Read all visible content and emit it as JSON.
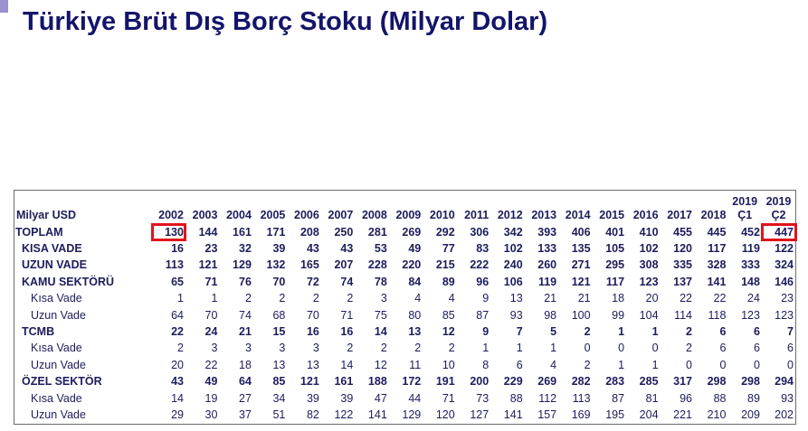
{
  "title": "Türkiye Brüt Dış Borç Stoku (Milyar Dolar)",
  "table": {
    "header": [
      "Milyar USD",
      "2002",
      "2003",
      "2004",
      "2005",
      "2006",
      "2007",
      "2008",
      "2009",
      "2010",
      "2011",
      "2012",
      "2013",
      "2014",
      "2015",
      "2016",
      "2017",
      "2018",
      "2019 Ç1",
      "2019 Ç2"
    ],
    "rows": [
      [
        "TOPLAM",
        130,
        144,
        161,
        171,
        208,
        250,
        281,
        269,
        292,
        306,
        342,
        393,
        406,
        401,
        410,
        455,
        445,
        452,
        447
      ],
      [
        "KISA VADE",
        16,
        23,
        32,
        39,
        43,
        43,
        53,
        49,
        77,
        83,
        102,
        133,
        135,
        105,
        102,
        120,
        117,
        119,
        122
      ],
      [
        "UZUN VADE",
        113,
        121,
        129,
        132,
        165,
        207,
        228,
        220,
        215,
        222,
        240,
        260,
        271,
        295,
        308,
        335,
        328,
        333,
        324
      ],
      [
        "KAMU SEKTÖRÜ",
        65,
        71,
        76,
        70,
        72,
        74,
        78,
        84,
        89,
        96,
        106,
        119,
        121,
        117,
        123,
        137,
        141,
        148,
        146
      ],
      [
        "Kısa Vade",
        1,
        1,
        2,
        2,
        2,
        2,
        3,
        4,
        4,
        9,
        13,
        21,
        21,
        18,
        20,
        22,
        22,
        24,
        23
      ],
      [
        "Uzun Vade",
        64,
        70,
        74,
        68,
        70,
        71,
        75,
        80,
        85,
        87,
        93,
        98,
        100,
        99,
        104,
        114,
        118,
        123,
        123
      ],
      [
        "TCMB",
        22,
        24,
        21,
        15,
        16,
        16,
        14,
        13,
        12,
        9,
        7,
        5,
        2,
        1,
        1,
        2,
        6,
        6,
        7
      ],
      [
        "Kısa Vade",
        2,
        3,
        3,
        3,
        3,
        2,
        2,
        2,
        2,
        1,
        1,
        1,
        0,
        0,
        0,
        2,
        6,
        6,
        6
      ],
      [
        "Uzun Vade",
        20,
        22,
        18,
        13,
        13,
        14,
        12,
        11,
        10,
        8,
        6,
        4,
        2,
        1,
        1,
        0,
        0,
        0,
        0
      ],
      [
        "ÖZEL SEKTÖR",
        43,
        49,
        64,
        85,
        121,
        161,
        188,
        172,
        191,
        200,
        229,
        269,
        282,
        283,
        285,
        317,
        298,
        298,
        294
      ],
      [
        "Kısa Vade",
        14,
        19,
        27,
        34,
        39,
        39,
        47,
        44,
        71,
        73,
        88,
        112,
        113,
        87,
        81,
        96,
        88,
        89,
        93
      ],
      [
        "Uzun Vade",
        29,
        30,
        37,
        51,
        82,
        122,
        141,
        129,
        120,
        127,
        141,
        157,
        169,
        195,
        204,
        221,
        210,
        209,
        202
      ]
    ]
  }
}
